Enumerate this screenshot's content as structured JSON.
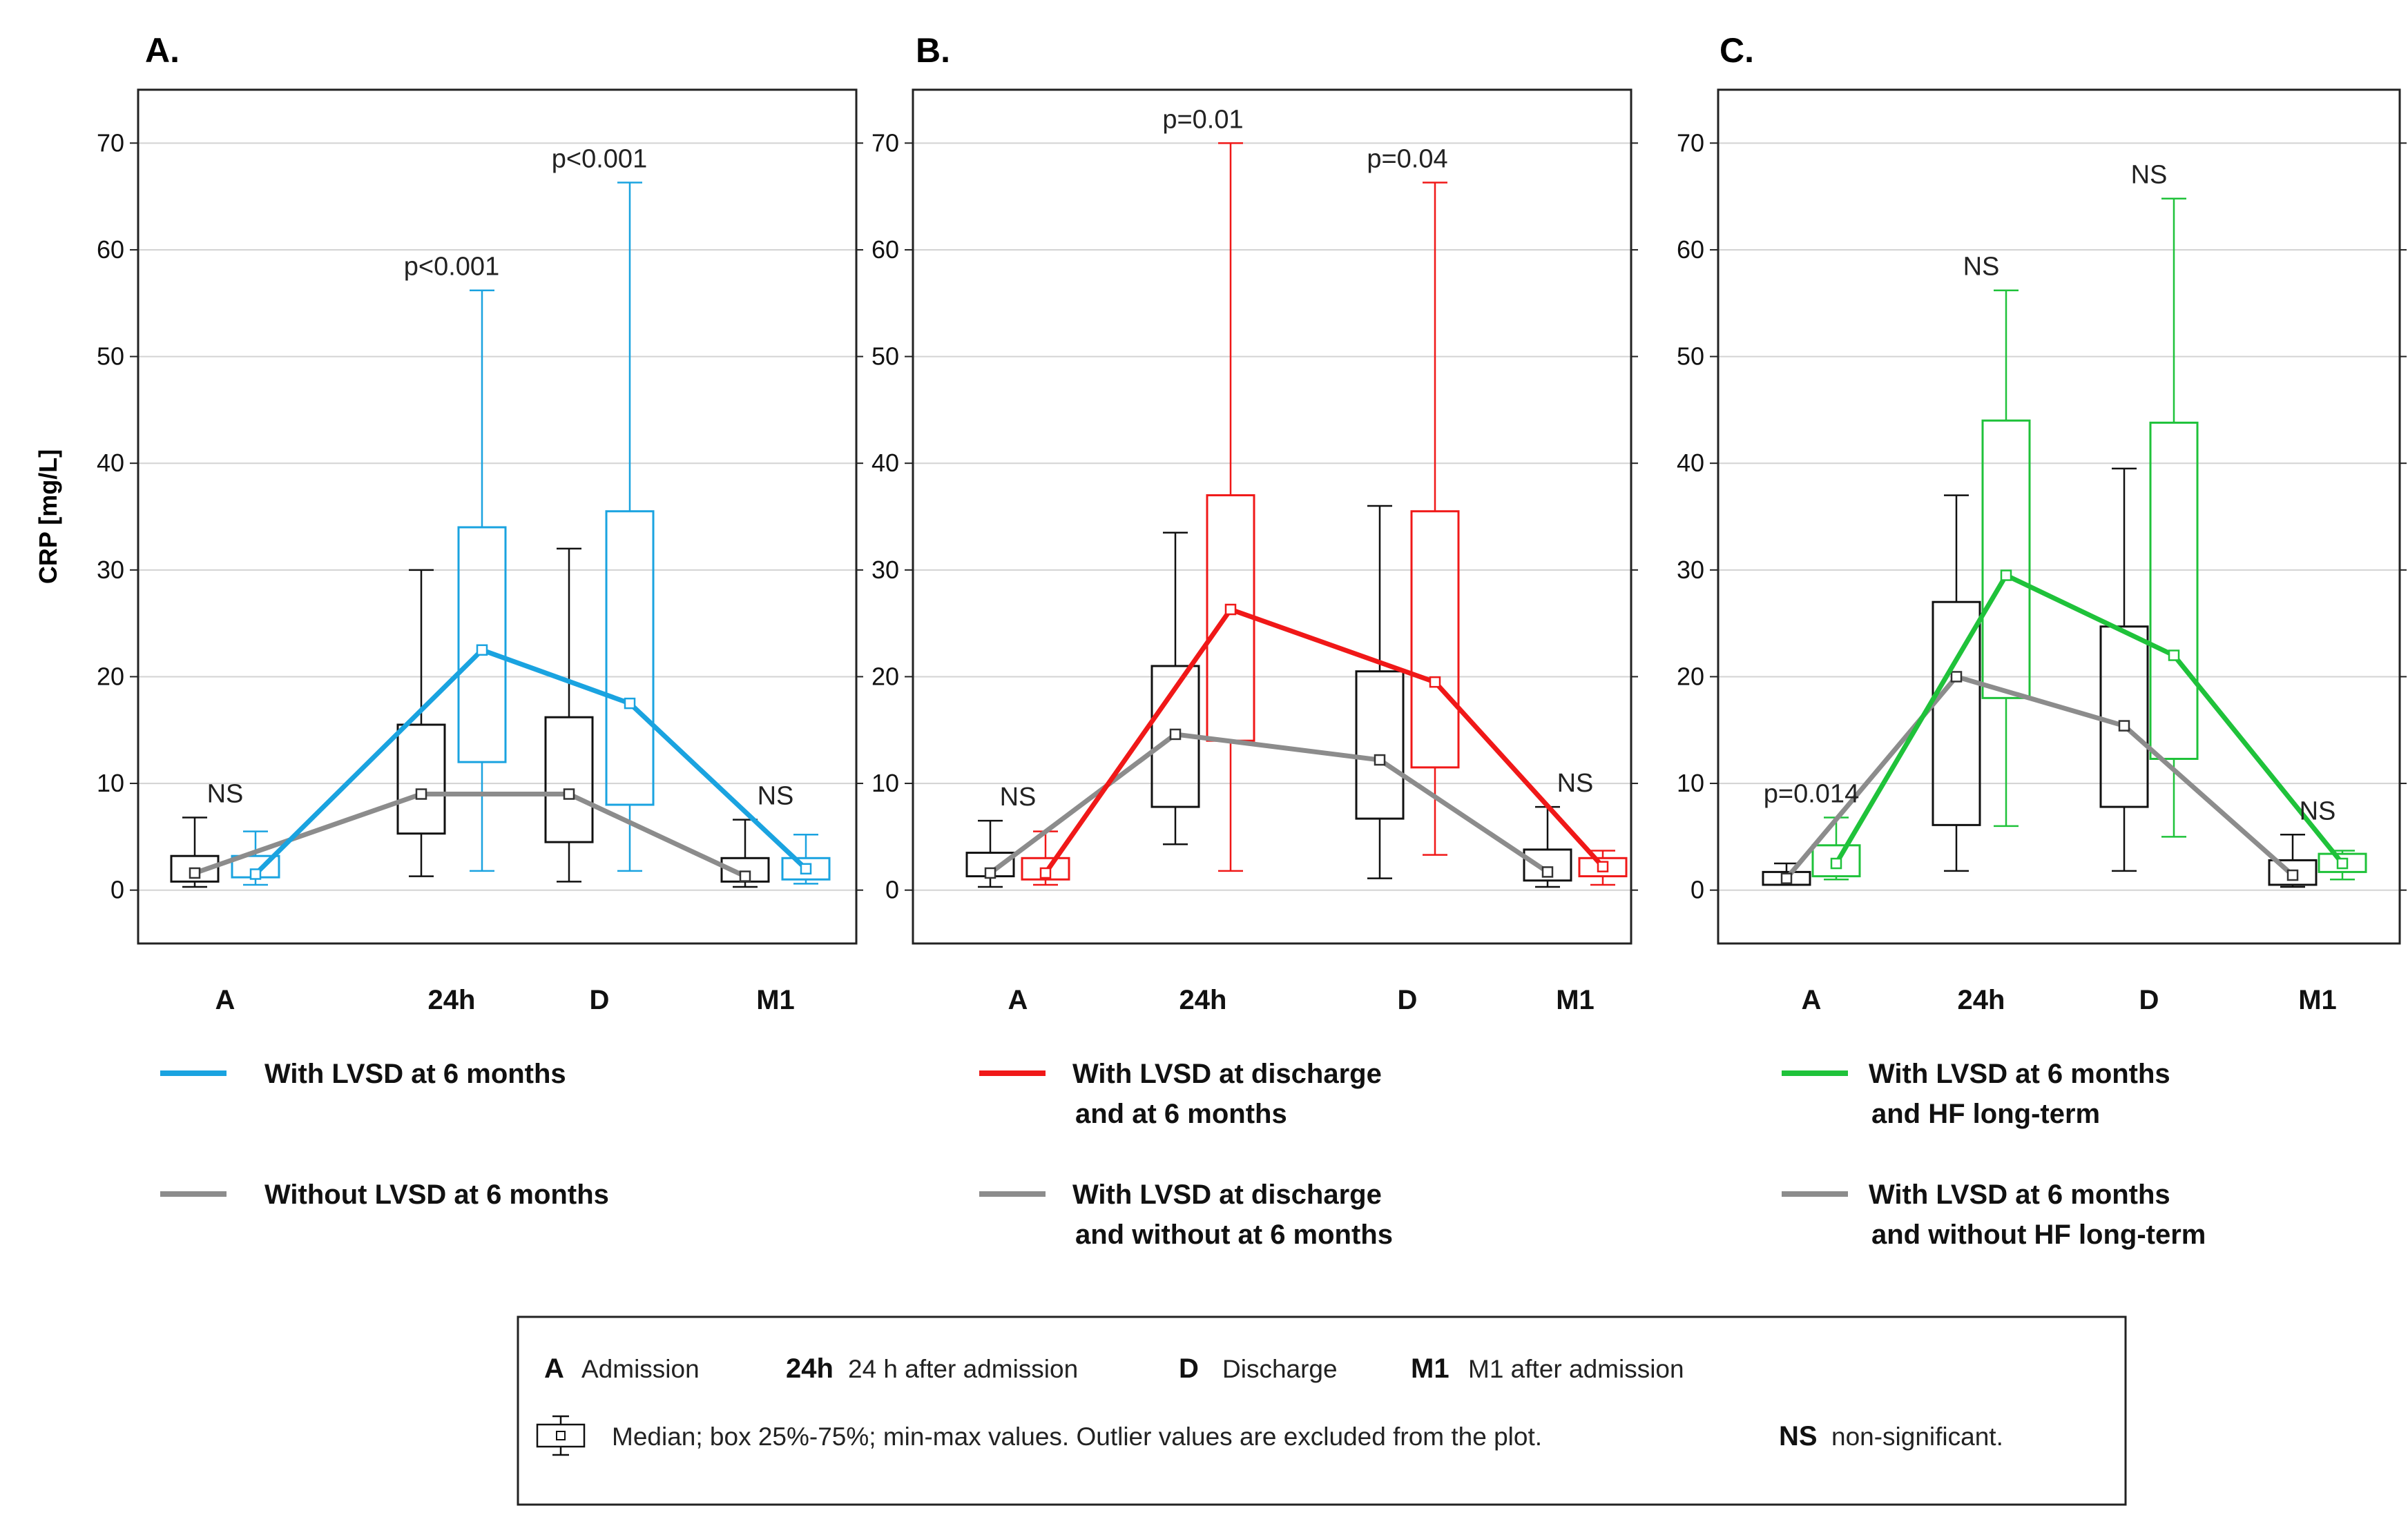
{
  "chart_data": [
    {
      "type": "box",
      "panel_label": "A.",
      "ylabel": "CRP [mg/L]",
      "ylim": [
        -5,
        75
      ],
      "yticks": [
        0,
        10,
        20,
        30,
        40,
        50,
        60,
        70
      ],
      "categories": [
        "A",
        "24h",
        "D",
        "M1"
      ],
      "colors": {
        "primary": "#1aa3e0",
        "secondary": "#8c8c8c",
        "box_secondary": "#111111"
      },
      "series": [
        {
          "name": "With LVSD at 6 months",
          "role": "primary",
          "boxes": [
            {
              "min": 0.5,
              "q1": 1.2,
              "median": 1.5,
              "q3": 3.2,
              "max": 5.5
            },
            {
              "min": 1.8,
              "q1": 12,
              "median": 22.5,
              "q3": 34,
              "max": 56.2
            },
            {
              "min": 1.8,
              "q1": 8,
              "median": 17.5,
              "q3": 35.5,
              "max": 66.3
            },
            {
              "min": 0.6,
              "q1": 1,
              "median": 2,
              "q3": 3,
              "max": 5.2
            }
          ]
        },
        {
          "name": "Without LVSD at 6 months",
          "role": "secondary",
          "boxes": [
            {
              "min": 0.3,
              "q1": 0.8,
              "median": 1.6,
              "q3": 3.2,
              "max": 6.8
            },
            {
              "min": 1.3,
              "q1": 5.3,
              "median": 9,
              "q3": 15.5,
              "max": 30
            },
            {
              "min": 0.8,
              "q1": 4.5,
              "median": 9,
              "q3": 16.2,
              "max": 32
            },
            {
              "min": 0.3,
              "q1": 0.8,
              "median": 1.3,
              "q3": 3,
              "max": 6.6
            }
          ]
        }
      ],
      "pvalues": [
        "NS",
        "p<0.001",
        "p<0.001",
        "NS"
      ]
    },
    {
      "type": "box",
      "panel_label": "B.",
      "ylim": [
        -5,
        75
      ],
      "yticks": [
        0,
        10,
        20,
        30,
        40,
        50,
        60,
        70
      ],
      "categories": [
        "A",
        "24h",
        "D",
        "M1"
      ],
      "colors": {
        "primary": "#f01818",
        "secondary": "#8c8c8c",
        "box_secondary": "#111111"
      },
      "series": [
        {
          "name": "With LVSD at discharge and at 6 months",
          "role": "primary",
          "boxes": [
            {
              "min": 0.5,
              "q1": 1,
              "median": 1.6,
              "q3": 3,
              "max": 5.5
            },
            {
              "min": 1.8,
              "q1": 14,
              "median": 26.3,
              "q3": 37,
              "max": 70
            },
            {
              "min": 3.3,
              "q1": 11.5,
              "median": 19.5,
              "q3": 35.5,
              "max": 66.3
            },
            {
              "min": 0.5,
              "q1": 1.3,
              "median": 2.2,
              "q3": 3,
              "max": 3.7
            }
          ]
        },
        {
          "name": "With LVSD at discharge and without at 6 months",
          "role": "secondary",
          "boxes": [
            {
              "min": 0.3,
              "q1": 1.3,
              "median": 1.6,
              "q3": 3.5,
              "max": 6.5
            },
            {
              "min": 4.3,
              "q1": 7.8,
              "median": 14.6,
              "q3": 21,
              "max": 33.5
            },
            {
              "min": 1.1,
              "q1": 6.7,
              "median": 12.2,
              "q3": 20.5,
              "max": 36
            },
            {
              "min": 0.3,
              "q1": 0.9,
              "median": 1.7,
              "q3": 3.8,
              "max": 7.8
            }
          ]
        }
      ],
      "pvalues": [
        "NS",
        "p=0.01",
        "p=0.04",
        "NS"
      ]
    },
    {
      "type": "box",
      "panel_label": "C.",
      "ylim": [
        -5,
        75
      ],
      "yticks": [
        0,
        10,
        20,
        30,
        40,
        50,
        60,
        70
      ],
      "categories": [
        "A",
        "24h",
        "D",
        "M1"
      ],
      "colors": {
        "primary": "#1fc23a",
        "secondary": "#8c8c8c",
        "box_secondary": "#111111"
      },
      "series": [
        {
          "name": "With LVSD at 6 months and HF long-term",
          "role": "primary",
          "boxes": [
            {
              "min": 1,
              "q1": 1.3,
              "median": 2.5,
              "q3": 4.2,
              "max": 6.8
            },
            {
              "min": 6,
              "q1": 18,
              "median": 29.5,
              "q3": 44,
              "max": 56.2
            },
            {
              "min": 5,
              "q1": 12.3,
              "median": 22,
              "q3": 43.8,
              "max": 64.8
            },
            {
              "min": 1,
              "q1": 1.7,
              "median": 2.5,
              "q3": 3.4,
              "max": 3.7
            }
          ]
        },
        {
          "name": "With LVSD at 6 months and without HF long-term",
          "role": "secondary",
          "boxes": [
            {
              "min": 0.5,
              "q1": 0.5,
              "median": 1.1,
              "q3": 1.7,
              "max": 2.5
            },
            {
              "min": 1.8,
              "q1": 6.1,
              "median": 20,
              "q3": 27,
              "max": 37
            },
            {
              "min": 1.8,
              "q1": 7.8,
              "median": 15.4,
              "q3": 24.7,
              "max": 39.5
            },
            {
              "min": 0.3,
              "q1": 0.5,
              "median": 1.4,
              "q3": 2.8,
              "max": 5.2
            }
          ]
        }
      ],
      "pvalues": [
        "p=0.014",
        "NS",
        "NS",
        "NS"
      ]
    }
  ],
  "key": {
    "items": [
      {
        "abbr": "A",
        "text": "Admission"
      },
      {
        "abbr": "24h",
        "text": "24 h after admission"
      },
      {
        "abbr": "D",
        "text": "Discharge"
      },
      {
        "abbr": "M1",
        "text": "M1 after admission"
      }
    ],
    "box_description": "Median; box 25%-75%; min-max values.  Outlier values are excluded from the plot.",
    "ns_abbr": "NS",
    "ns_text": "non-significant."
  }
}
